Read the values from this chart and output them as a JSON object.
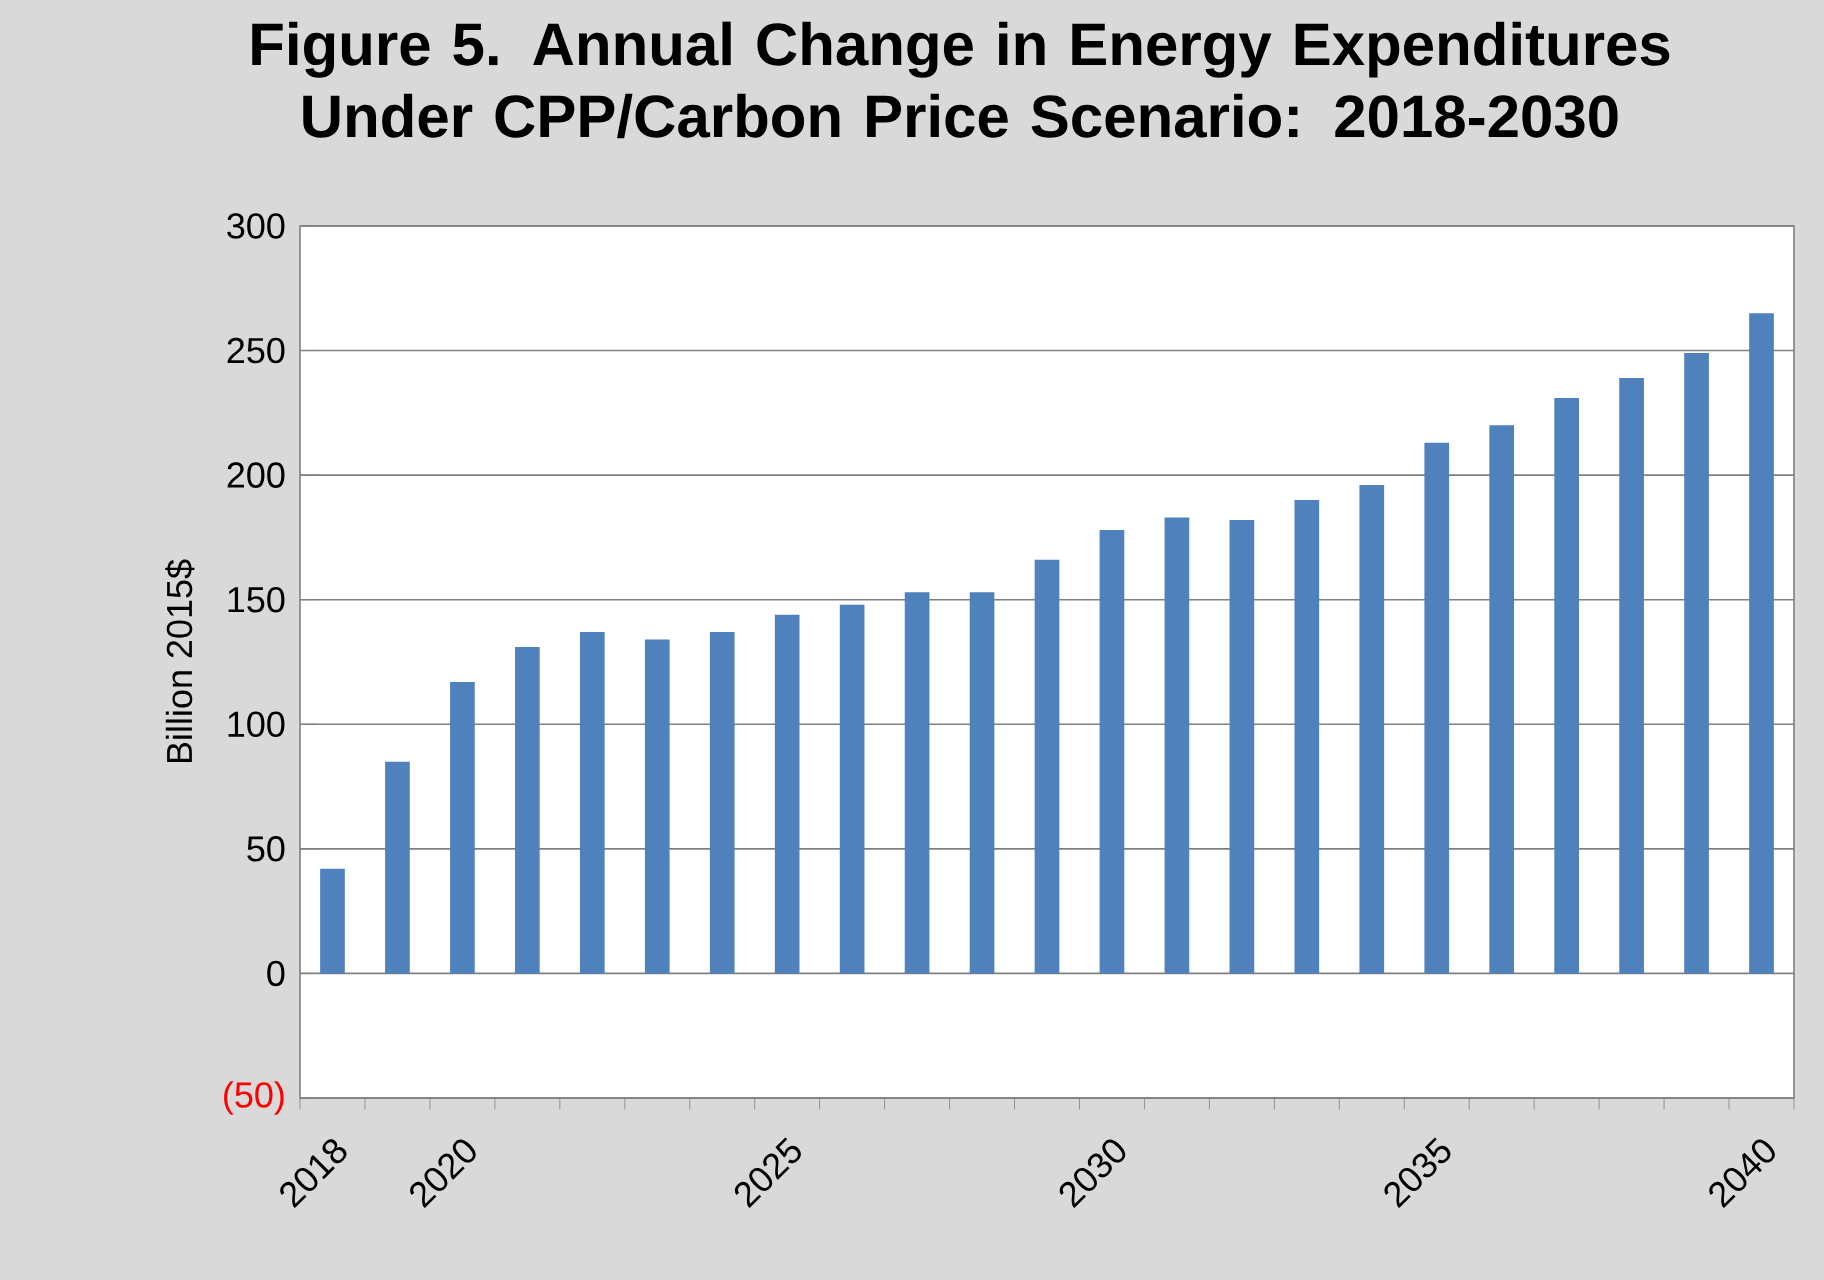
{
  "chart_data": {
    "type": "bar",
    "title": "Figure 5. Annual Change in Energy Expenditures Under CPP/Carbon Price Scenario: 2018-2030",
    "ylabel": "Billion 2015$",
    "categories": [
      "2018",
      null,
      "2020",
      null,
      null,
      null,
      null,
      "2025",
      null,
      null,
      null,
      null,
      "2030",
      null,
      null,
      null,
      null,
      "2035",
      null,
      null,
      null,
      null,
      "2040"
    ],
    "values": [
      42,
      85,
      117,
      131,
      137,
      134,
      137,
      144,
      148,
      153,
      153,
      166,
      178,
      183,
      182,
      190,
      196,
      213,
      220,
      231,
      239,
      249,
      265
    ],
    "color": "#4f81bd",
    "ylim": [
      -50,
      300
    ],
    "yticks": [
      {
        "value": -50,
        "label": "(50)"
      },
      0,
      50,
      100,
      150,
      200,
      250,
      300
    ],
    "grid": "y"
  }
}
